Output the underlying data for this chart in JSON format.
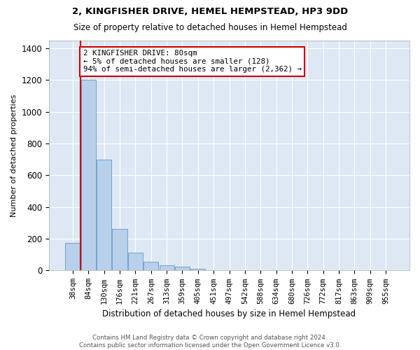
{
  "title": "2, KINGFISHER DRIVE, HEMEL HEMPSTEAD, HP3 9DD",
  "subtitle": "Size of property relative to detached houses in Hemel Hempstead",
  "xlabel": "Distribution of detached houses by size in Hemel Hempstead",
  "ylabel": "Number of detached properties",
  "footer_line1": "Contains HM Land Registry data © Crown copyright and database right 2024.",
  "footer_line2": "Contains public sector information licensed under the Open Government Licence v3.0.",
  "annotation_line0": "2 KINGFISHER DRIVE: 80sqm",
  "annotation_line1": "← 5% of detached houses are smaller (128)",
  "annotation_line2": "94% of semi-detached houses are larger (2,362) →",
  "bar_labels": [
    "38sqm",
    "84sqm",
    "130sqm",
    "176sqm",
    "221sqm",
    "267sqm",
    "313sqm",
    "359sqm",
    "405sqm",
    "451sqm",
    "497sqm",
    "542sqm",
    "588sqm",
    "634sqm",
    "680sqm",
    "726sqm",
    "772sqm",
    "817sqm",
    "863sqm",
    "909sqm",
    "955sqm"
  ],
  "bar_values": [
    175,
    1200,
    700,
    260,
    110,
    55,
    35,
    25,
    10,
    0,
    0,
    0,
    0,
    0,
    0,
    0,
    0,
    0,
    0,
    0,
    0
  ],
  "bar_color": "#b8d0ea",
  "bar_edge_color": "#6699cc",
  "red_line_color": "#cc0000",
  "annotation_box_edge_color": "#cc0000",
  "background_color": "#dde8f4",
  "ylim": [
    0,
    1450
  ],
  "yticks": [
    0,
    200,
    400,
    600,
    800,
    1000,
    1200,
    1400
  ],
  "red_line_bar_index": 1
}
